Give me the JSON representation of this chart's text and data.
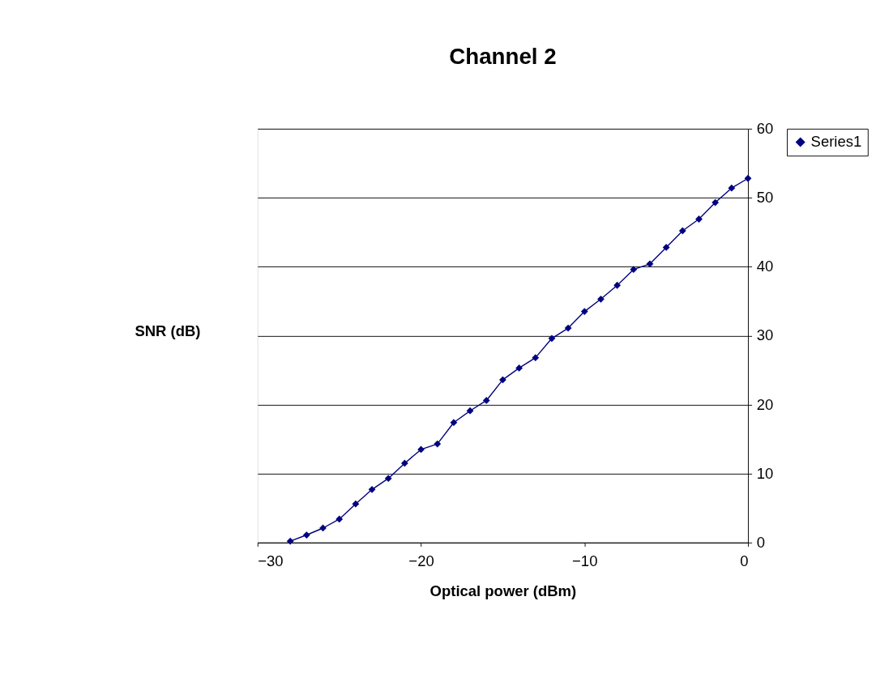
{
  "chart_data": {
    "type": "line",
    "title": "Channel 2",
    "xlabel": "Optical power (dBm)",
    "ylabel": "SNR (dB)",
    "x": [
      -28,
      -27,
      -26,
      -25,
      -24,
      -23,
      -22,
      -21,
      -20,
      -19,
      -18,
      -17,
      -16,
      -15,
      -14,
      -13,
      -12,
      -11,
      -10,
      -9,
      -8,
      -7,
      -6,
      -5,
      -4,
      -3,
      -2,
      -1,
      0
    ],
    "series": [
      {
        "name": "Series1",
        "color": "#000080",
        "values": [
          0.2,
          1.1,
          2.1,
          3.4,
          5.6,
          7.7,
          9.3,
          11.5,
          13.5,
          14.3,
          17.4,
          19.1,
          20.6,
          23.6,
          25.3,
          26.8,
          29.6,
          31.1,
          33.5,
          35.3,
          37.3,
          39.6,
          40.4,
          42.8,
          45.2,
          46.9,
          49.3,
          51.4,
          52.8
        ]
      }
    ],
    "xlim": [
      -30,
      0
    ],
    "xticks": [
      -30,
      -20,
      -10,
      0
    ],
    "ylim": [
      0,
      60
    ],
    "yticks": [
      0,
      10,
      20,
      30,
      40,
      50,
      60
    ],
    "grid": "y",
    "legend": "right",
    "marker": "diamond",
    "line_style": "solid"
  }
}
